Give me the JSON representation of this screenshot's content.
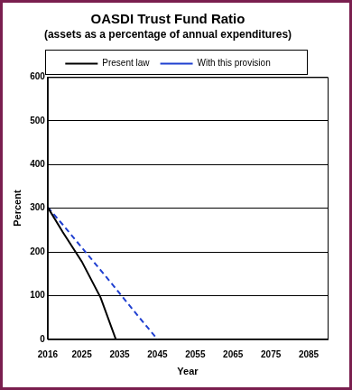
{
  "chart_data": {
    "type": "line",
    "title": "OASDI Trust Fund Ratio",
    "subtitle": "(assets as a percentage of annual expenditures)",
    "x_label": "Year",
    "y_label": "Percent",
    "x": [
      2016,
      2020,
      2025,
      2030,
      2034,
      2035,
      2040,
      2045
    ],
    "series": [
      {
        "name": "Present law",
        "color": "#000000",
        "line_style": "solid",
        "values": [
          302,
          245,
          178,
          95,
          0,
          null,
          null,
          null
        ]
      },
      {
        "name": "With this provision",
        "color": "#1f3fd0",
        "line_style": "dashed",
        "values": [
          302,
          262,
          210,
          158,
          116,
          105,
          52,
          0
        ]
      }
    ],
    "xlim": [
      2016,
      2090
    ],
    "xticks": [
      2016,
      2025,
      2035,
      2045,
      2055,
      2065,
      2075,
      2085
    ],
    "ylim": [
      0,
      600
    ],
    "yticks": [
      0,
      100,
      200,
      300,
      400,
      500,
      600
    ],
    "grid": true,
    "legend": "top"
  }
}
